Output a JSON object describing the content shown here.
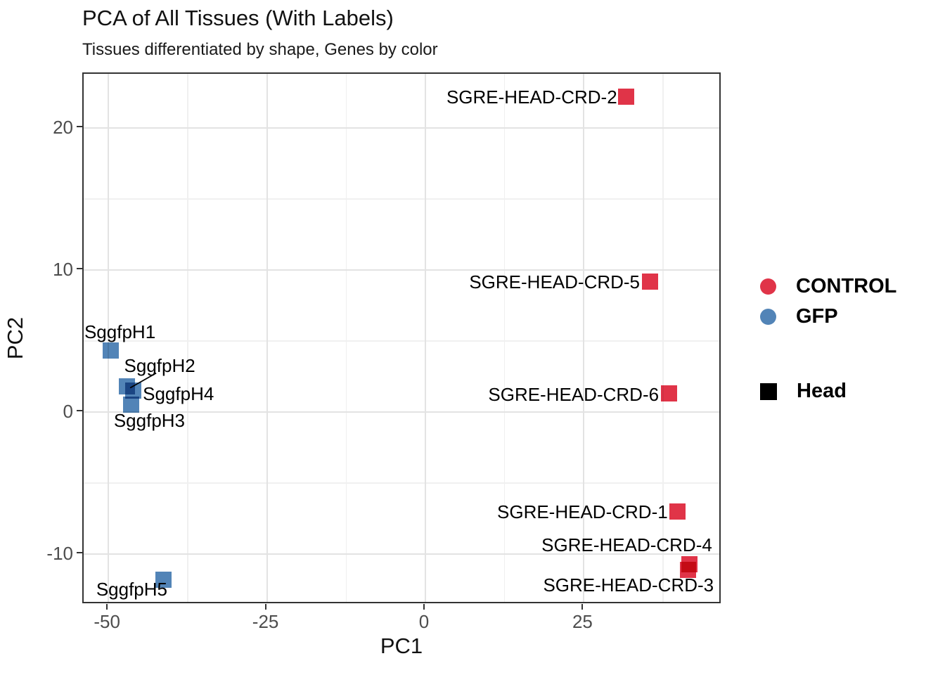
{
  "title": "PCA of All Tissues (With Labels)",
  "subtitle": "Tissues differentiated by shape, Genes by color",
  "chart_data": {
    "type": "scatter",
    "title": "PCA of All Tissues (With Labels)",
    "subtitle": "Tissues differentiated by shape, Genes by color",
    "xlabel": "PC1",
    "ylabel": "PC2",
    "xlim": [
      -53.9,
      46.8
    ],
    "ylim": [
      -13.56,
      23.8
    ],
    "x_major_ticks": [
      -50,
      -25,
      0,
      25
    ],
    "x_minor_gridlines": [
      -37.5,
      -12.5,
      12.5,
      37.5
    ],
    "y_major_ticks": [
      -10,
      0,
      10,
      20
    ],
    "y_minor_gridlines": [
      -5,
      5,
      15
    ],
    "grid": "major+minor",
    "marker_shape": "square",
    "legend_position": "right",
    "series": [
      {
        "name": "CONTROL",
        "color": "#e03448",
        "points": [
          {
            "label": "SGRE-HEAD-CRD-2",
            "x": 31.9,
            "y": 22.1,
            "label_anchor": "right",
            "label_dx": -13,
            "label_dy": 0
          },
          {
            "label": "SGRE-HEAD-CRD-5",
            "x": 35.6,
            "y": 9.1,
            "label_anchor": "right",
            "label_dx": -14,
            "label_dy": 0
          },
          {
            "label": "SGRE-HEAD-CRD-6",
            "x": 38.6,
            "y": 1.2,
            "label_anchor": "right",
            "label_dx": -14,
            "label_dy": 0
          },
          {
            "label": "SGRE-HEAD-CRD-1",
            "x": 40.0,
            "y": -7.1,
            "label_anchor": "right",
            "label_dx": -14,
            "label_dy": 0
          },
          {
            "label": "SGRE-HEAD-CRD-4",
            "x": 41.9,
            "y": -10.8,
            "label_anchor": "right",
            "label_dx": 32,
            "label_dy": -28
          },
          {
            "label": "SGRE-HEAD-CRD-3",
            "x": 41.6,
            "y": -11.2,
            "label_anchor": "right",
            "label_dx": 37,
            "label_dy": 21
          }
        ]
      },
      {
        "name": "GFP",
        "color": "#5284b7",
        "points": [
          {
            "label": "SggfpH1",
            "x": -49.4,
            "y": 4.25,
            "label_anchor": "center",
            "label_dx": 13,
            "label_dy": -27
          },
          {
            "label": "SggfpH2",
            "x": -46.9,
            "y": 1.7,
            "label_anchor": "center",
            "label_dx": 47,
            "label_dy": -31,
            "leader": true
          },
          {
            "label": "SggfpH4",
            "x": -45.9,
            "y": 1.4,
            "label_anchor": "left",
            "label_dx": 14,
            "label_dy": 3
          },
          {
            "label": "SggfpH3",
            "x": -46.2,
            "y": 0.4,
            "label_anchor": "center",
            "label_dx": 26,
            "label_dy": 21
          },
          {
            "label": "SggfpH5",
            "x": -41.1,
            "y": -11.9,
            "label_anchor": "center",
            "label_dx": -45,
            "label_dy": 13
          }
        ]
      }
    ]
  },
  "legend": {
    "color_items": [
      {
        "label": "CONTROL",
        "color": "#e03448"
      },
      {
        "label": "GFP",
        "color": "#5284b7"
      }
    ],
    "shape_items": [
      {
        "label": "Head",
        "shape": "filled-square",
        "color": "#000000"
      }
    ]
  },
  "colors": {
    "control_red": "#e03448",
    "gfp_blue": "#5284b7",
    "grid_major": "#e3e3e3",
    "grid_minor": "#f0f0f0",
    "panel_border": "#333333",
    "tick_label": "#4d4d4d"
  }
}
